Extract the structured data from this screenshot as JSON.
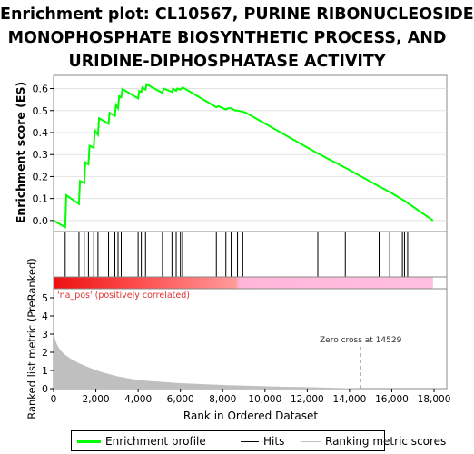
{
  "title_lines": [
    "Enrichment plot: CL10567, PURINE RIBONUCLEOSIDE",
    "MONOPHOSPHATE BIOSYNTHETIC PROCESS, AND",
    "URIDINE-DIPHOSPHATASE ACTIVITY"
  ],
  "colors": {
    "es_line": "#00ff00",
    "hits": "#000000",
    "ranking": "#bfbfbf",
    "panel_bg": "#f0f0f0",
    "pos_red": "#ff0000",
    "neg_pink": "#ffb6d9"
  },
  "chart_data": [
    {
      "type": "line",
      "name": "enrichment-profile",
      "ylabel": "Enrichment score (ES)",
      "xlim": [
        0,
        18600
      ],
      "ylim": [
        -0.05,
        0.66
      ],
      "yticks": [
        0.0,
        0.1,
        0.2,
        0.3,
        0.4,
        0.5,
        0.6
      ],
      "ytick_labels": [
        "0.0",
        "0.1",
        "0.2",
        "0.3",
        "0.4",
        "0.5",
        "0.6"
      ],
      "grid": true,
      "series": [
        {
          "x": [
            0,
            550,
            600,
            1200,
            1250,
            1450,
            1500,
            1650,
            1700,
            1900,
            1950,
            2100,
            2150,
            2600,
            2650,
            2900,
            2950,
            3050,
            3100,
            3200,
            3250,
            4000,
            4050,
            4150,
            4200,
            4350,
            4400,
            5150,
            5200,
            5600,
            5650,
            5800,
            5850,
            6000,
            6100,
            6200,
            7700,
            7800,
            8150,
            8250,
            8400,
            8600,
            8700,
            8950,
            9100,
            12500,
            13800,
            15400,
            15900,
            16500,
            16600,
            16750,
            17950
          ],
          "y": [
            0.0,
            -0.03,
            0.115,
            0.075,
            0.18,
            0.17,
            0.265,
            0.255,
            0.34,
            0.33,
            0.41,
            0.39,
            0.465,
            0.44,
            0.49,
            0.475,
            0.525,
            0.51,
            0.565,
            0.56,
            0.598,
            0.555,
            0.59,
            0.585,
            0.605,
            0.595,
            0.62,
            0.58,
            0.6,
            0.585,
            0.6,
            0.59,
            0.6,
            0.595,
            0.605,
            0.6,
            0.515,
            0.52,
            0.505,
            0.51,
            0.51,
            0.5,
            0.5,
            0.495,
            0.49,
            0.305,
            0.24,
            0.155,
            0.13,
            0.095,
            0.09,
            0.08,
            0.0
          ]
        }
      ]
    },
    {
      "type": "scatter",
      "name": "hits",
      "xlim": [
        0,
        18600
      ],
      "x": [
        550,
        1200,
        1450,
        1650,
        1900,
        2100,
        2600,
        2900,
        3050,
        3200,
        4000,
        4150,
        4350,
        5150,
        5600,
        5800,
        6000,
        6100,
        7700,
        8150,
        8400,
        8700,
        8950,
        12500,
        13800,
        15400,
        15900,
        16500,
        16600,
        16750
      ]
    },
    {
      "type": "area",
      "name": "ranked-list-metric",
      "ylabel": "Ranked list metric (PreRanked)",
      "xlabel": "Rank in Ordered Dataset",
      "xlim": [
        0,
        18600
      ],
      "ylim": [
        0,
        5
      ],
      "yticks": [
        0,
        1,
        2,
        3,
        4,
        5
      ],
      "ytick_labels": [
        "0",
        "1",
        "2",
        "3",
        "4",
        "5"
      ],
      "xticks": [
        0,
        2000,
        4000,
        6000,
        8000,
        10000,
        12000,
        14000,
        16000,
        18000
      ],
      "xtick_labels": [
        "0",
        "2,000",
        "4,000",
        "6,000",
        "8,000",
        "10,000",
        "12,000",
        "14,000",
        "16,000",
        "18,000"
      ],
      "x": [
        0,
        50,
        150,
        300,
        500,
        800,
        1200,
        1700,
        2300,
        3000,
        4000,
        5000,
        6000,
        7000,
        8000,
        9000,
        10000,
        11000,
        12000,
        13000,
        14000,
        14529
      ],
      "y": [
        3.2,
        2.8,
        2.45,
        2.15,
        1.9,
        1.65,
        1.4,
        1.15,
        0.9,
        0.68,
        0.47,
        0.38,
        0.3,
        0.25,
        0.2,
        0.16,
        0.13,
        0.1,
        0.08,
        0.05,
        0.02,
        0.0
      ],
      "zero_cross": 14529,
      "annotations": [
        "'na_pos' (positively correlated)",
        "Zero cross at 14529"
      ]
    }
  ],
  "legend": {
    "es_label": "Enrichment profile",
    "hits_label": "Hits",
    "ranking_label": "Ranking metric scores"
  }
}
